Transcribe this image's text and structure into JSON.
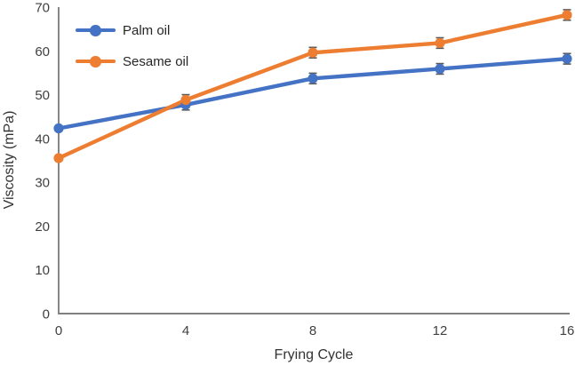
{
  "chart_data": {
    "type": "line",
    "title": "",
    "xlabel": "Frying Cycle",
    "ylabel": "Viscosity (mPa)",
    "x": [
      0,
      4,
      8,
      12,
      16
    ],
    "x_ticks": [
      0,
      4,
      8,
      12,
      16
    ],
    "y_ticks": [
      0,
      10,
      20,
      30,
      40,
      50,
      60,
      70
    ],
    "xlim": [
      0,
      16
    ],
    "ylim": [
      0,
      70
    ],
    "grid": false,
    "legend_position": "top-left-inside",
    "series": [
      {
        "name": "Palm oil",
        "color": "#4472C4",
        "marker": "circle",
        "values": [
          42.3,
          47.7,
          53.7,
          55.9,
          58.2
        ],
        "error": [
          0.5,
          1.2,
          1.2,
          1.2,
          1.2
        ]
      },
      {
        "name": "Sesame oil",
        "color": "#ED7D31",
        "marker": "circle",
        "values": [
          35.5,
          48.8,
          59.6,
          61.8,
          68.2
        ],
        "error": [
          0.5,
          1.2,
          1.2,
          1.2,
          1.2
        ]
      }
    ]
  },
  "colors": {
    "background": "#ffffff",
    "axis_line": "#808080",
    "tick_text": "#404040",
    "axis_title_text": "#333333",
    "error_bar": "#595959"
  }
}
